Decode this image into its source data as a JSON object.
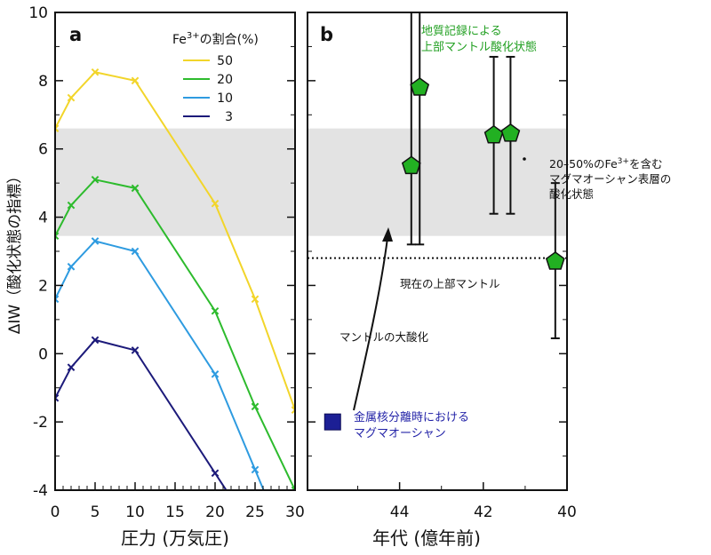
{
  "chart_data": [
    {
      "panel": "a",
      "type": "line",
      "title": "",
      "xlabel": "圧力 (万気圧)",
      "ylabel": "ΔIW（酸化状態の指標）",
      "xlim": [
        0,
        30
      ],
      "ylim": [
        -4,
        10
      ],
      "xticks": [
        "0",
        "5",
        "10",
        "15",
        "20",
        "25",
        "30"
      ],
      "yticks": [
        "-4",
        "-2",
        "0",
        "2",
        "4",
        "6",
        "8",
        "10"
      ],
      "legend_title": "Fe³⁺の割合(%)",
      "legend_title_parts": {
        "base": "Fe",
        "sup": "3+",
        "rest": "の割合(%)"
      },
      "legend_position": "top-right",
      "shaded_band": {
        "y0": 3.45,
        "y1": 6.6,
        "color": "#e3e3e3"
      },
      "x": [
        0,
        2,
        5,
        10,
        20,
        25,
        30
      ],
      "series": [
        {
          "name": "50",
          "color": "#f2d52a",
          "values": [
            6.6,
            7.5,
            8.25,
            8.0,
            4.4,
            1.6,
            -1.65
          ]
        },
        {
          "name": "20",
          "color": "#2dbb2d",
          "values": [
            3.45,
            4.35,
            5.1,
            4.85,
            1.25,
            -1.55,
            -4.0
          ]
        },
        {
          "name": "10",
          "color": "#2e9be0",
          "values": [
            1.6,
            2.55,
            3.3,
            3.0,
            -0.6,
            -3.4,
            null
          ]
        },
        {
          "name": "3",
          "color": "#1c1a7a",
          "values": [
            -1.3,
            -0.4,
            0.4,
            0.1,
            -3.5,
            null,
            null
          ]
        }
      ]
    },
    {
      "panel": "b",
      "type": "scatter",
      "xlabel": "年代 (億年前)",
      "xlim": [
        46.2,
        40
      ],
      "ylim": [
        -4,
        10
      ],
      "xticks": [
        "44",
        "42",
        "40"
      ],
      "shaded_band": {
        "y0": 3.45,
        "y1": 6.6,
        "color": "#e3e3e3"
      },
      "reference_line": {
        "y": 2.8,
        "label": "現在の上部マントル"
      },
      "points": [
        {
          "x": 43.72,
          "y": 5.5,
          "ylow": 3.2,
          "yhigh": 10
        },
        {
          "x": 43.52,
          "y": 7.8,
          "ylow": 3.2,
          "yhigh": 10
        },
        {
          "x": 41.75,
          "y": 6.4,
          "ylow": 4.1,
          "yhigh": 8.7
        },
        {
          "x": 41.35,
          "y": 6.45,
          "ylow": 4.1,
          "yhigh": 8.7
        },
        {
          "x": 40.28,
          "y": 2.7,
          "ylow": 0.45,
          "yhigh": 5.0
        }
      ],
      "points_color": "#22b022",
      "points_label": [
        "地質記録による",
        "上部マントル酸化状態"
      ],
      "square_point": {
        "x": 45.6,
        "y": -2.0,
        "color": "#1c1f95",
        "label": [
          "金属核分離時における",
          "マグマオーシャン"
        ]
      },
      "band_annotation": {
        "parts": [
          "20–50%の",
          "Fe",
          "3+",
          "を含む"
        ],
        "lines": [
          "マグマオーシャン表層の",
          "酸化状態"
        ]
      },
      "arrow_annotation": "マントルの大酸化"
    }
  ]
}
